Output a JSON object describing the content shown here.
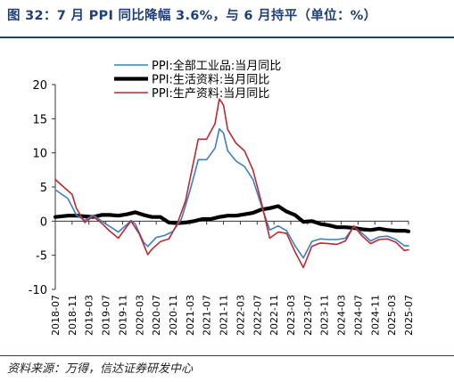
{
  "title": "图 32：7 月 PPI 同比降幅 3.6%，与 6 月持平（单位：%）",
  "source": "资料来源：万得，信达证券研发中心",
  "chart_data": {
    "type": "line",
    "ylim": [
      -10,
      20
    ],
    "yticks": [
      -10,
      -5,
      0,
      5,
      10,
      15,
      20
    ],
    "xlim": [
      "2018-07",
      "2025-07"
    ],
    "xtick_labels": [
      "2018-07",
      "2018-11",
      "2019-03",
      "2019-07",
      "2019-11",
      "2020-03",
      "2020-07",
      "2020-11",
      "2021-03",
      "2021-07",
      "2021-11",
      "2022-03",
      "2022-07",
      "2022-11",
      "2023-03",
      "2023-07",
      "2023-11",
      "2024-03",
      "2024-07",
      "2024-11",
      "2025-03",
      "2025-07"
    ],
    "grid": false,
    "legend_position": "top-left",
    "series": [
      {
        "name": "PPI:全部工业品:当月同比",
        "color": "#3a7fc1",
        "points": [
          [
            "2018-07",
            4.6
          ],
          [
            "2018-10",
            3.3
          ],
          [
            "2018-12",
            0.9
          ],
          [
            "2019-02",
            0.1
          ],
          [
            "2019-04",
            0.9
          ],
          [
            "2019-06",
            0.0
          ],
          [
            "2019-08",
            -0.8
          ],
          [
            "2019-10",
            -1.6
          ],
          [
            "2019-12",
            -0.5
          ],
          [
            "2020-01",
            0.1
          ],
          [
            "2020-02",
            -0.4
          ],
          [
            "2020-04",
            -3.1
          ],
          [
            "2020-05",
            -3.7
          ],
          [
            "2020-07",
            -2.4
          ],
          [
            "2020-09",
            -2.1
          ],
          [
            "2020-11",
            -1.5
          ],
          [
            "2021-01",
            0.3
          ],
          [
            "2021-03",
            4.4
          ],
          [
            "2021-05",
            9.0
          ],
          [
            "2021-07",
            9.0
          ],
          [
            "2021-09",
            10.7
          ],
          [
            "2021-10",
            13.5
          ],
          [
            "2021-11",
            12.9
          ],
          [
            "2021-12",
            10.3
          ],
          [
            "2022-02",
            8.8
          ],
          [
            "2022-04",
            8.0
          ],
          [
            "2022-06",
            6.1
          ],
          [
            "2022-08",
            2.3
          ],
          [
            "2022-10",
            -1.3
          ],
          [
            "2022-12",
            -0.7
          ],
          [
            "2023-02",
            -1.4
          ],
          [
            "2023-04",
            -3.6
          ],
          [
            "2023-06",
            -5.4
          ],
          [
            "2023-08",
            -3.0
          ],
          [
            "2023-10",
            -2.6
          ],
          [
            "2023-12",
            -2.7
          ],
          [
            "2024-02",
            -2.7
          ],
          [
            "2024-04",
            -2.5
          ],
          [
            "2024-06",
            -0.8
          ],
          [
            "2024-08",
            -1.8
          ],
          [
            "2024-10",
            -2.9
          ],
          [
            "2024-12",
            -2.3
          ],
          [
            "2025-02",
            -2.2
          ],
          [
            "2025-04",
            -2.7
          ],
          [
            "2025-06",
            -3.6
          ],
          [
            "2025-07",
            -3.6
          ]
        ]
      },
      {
        "name": "PPI:生活资料:当月同比",
        "color": "#000000",
        "points": [
          [
            "2018-07",
            0.6
          ],
          [
            "2018-10",
            0.8
          ],
          [
            "2018-12",
            0.8
          ],
          [
            "2019-02",
            0.7
          ],
          [
            "2019-04",
            0.6
          ],
          [
            "2019-06",
            0.9
          ],
          [
            "2019-08",
            0.9
          ],
          [
            "2019-10",
            0.8
          ],
          [
            "2019-12",
            1.0
          ],
          [
            "2020-02",
            1.3
          ],
          [
            "2020-04",
            0.9
          ],
          [
            "2020-06",
            0.6
          ],
          [
            "2020-08",
            0.6
          ],
          [
            "2020-10",
            -0.2
          ],
          [
            "2020-12",
            -0.3
          ],
          [
            "2021-02",
            -0.2
          ],
          [
            "2021-04",
            0.0
          ],
          [
            "2021-06",
            0.3
          ],
          [
            "2021-08",
            0.3
          ],
          [
            "2021-10",
            0.6
          ],
          [
            "2021-12",
            0.8
          ],
          [
            "2022-02",
            0.8
          ],
          [
            "2022-04",
            1.0
          ],
          [
            "2022-06",
            1.2
          ],
          [
            "2022-08",
            1.7
          ],
          [
            "2022-10",
            1.9
          ],
          [
            "2022-12",
            2.2
          ],
          [
            "2023-02",
            1.4
          ],
          [
            "2023-04",
            0.9
          ],
          [
            "2023-06",
            -0.1
          ],
          [
            "2023-08",
            0.0
          ],
          [
            "2023-10",
            -0.4
          ],
          [
            "2023-12",
            -0.6
          ],
          [
            "2024-02",
            -0.9
          ],
          [
            "2024-04",
            -0.9
          ],
          [
            "2024-06",
            -1.0
          ],
          [
            "2024-08",
            -1.2
          ],
          [
            "2024-10",
            -1.3
          ],
          [
            "2024-12",
            -1.1
          ],
          [
            "2025-02",
            -1.3
          ],
          [
            "2025-04",
            -1.4
          ],
          [
            "2025-06",
            -1.4
          ],
          [
            "2025-07",
            -1.5
          ]
        ]
      },
      {
        "name": "PPI:生产资料:当月同比",
        "color": "#c0282f",
        "points": [
          [
            "2018-07",
            6.1
          ],
          [
            "2018-09",
            5.0
          ],
          [
            "2018-11",
            3.9
          ],
          [
            "2018-12",
            1.9
          ],
          [
            "2019-02",
            -0.2
          ],
          [
            "2019-04",
            0.7
          ],
          [
            "2019-06",
            -0.3
          ],
          [
            "2019-08",
            -1.5
          ],
          [
            "2019-10",
            -2.5
          ],
          [
            "2019-12",
            -0.8
          ],
          [
            "2020-01",
            0.0
          ],
          [
            "2020-03",
            -1.9
          ],
          [
            "2020-05",
            -4.9
          ],
          [
            "2020-06",
            -4.1
          ],
          [
            "2020-08",
            -3.0
          ],
          [
            "2020-10",
            -2.6
          ],
          [
            "2020-12",
            -0.4
          ],
          [
            "2021-02",
            3.0
          ],
          [
            "2021-03",
            6.1
          ],
          [
            "2021-05",
            12.0
          ],
          [
            "2021-07",
            12.0
          ],
          [
            "2021-09",
            14.3
          ],
          [
            "2021-10",
            17.9
          ],
          [
            "2021-11",
            17.0
          ],
          [
            "2021-12",
            13.4
          ],
          [
            "2022-02",
            11.4
          ],
          [
            "2022-04",
            10.3
          ],
          [
            "2022-06",
            7.5
          ],
          [
            "2022-08",
            2.8
          ],
          [
            "2022-10",
            -2.5
          ],
          [
            "2022-12",
            -1.6
          ],
          [
            "2023-02",
            -1.8
          ],
          [
            "2023-04",
            -4.5
          ],
          [
            "2023-06",
            -6.8
          ],
          [
            "2023-08",
            -3.7
          ],
          [
            "2023-10",
            -3.2
          ],
          [
            "2023-12",
            -3.3
          ],
          [
            "2024-02",
            -3.4
          ],
          [
            "2024-04",
            -2.9
          ],
          [
            "2024-06",
            -0.7
          ],
          [
            "2024-08",
            -2.2
          ],
          [
            "2024-10",
            -3.3
          ],
          [
            "2024-12",
            -2.7
          ],
          [
            "2025-02",
            -2.6
          ],
          [
            "2025-04",
            -3.1
          ],
          [
            "2025-06",
            -4.3
          ],
          [
            "2025-07",
            -4.2
          ]
        ]
      }
    ]
  }
}
